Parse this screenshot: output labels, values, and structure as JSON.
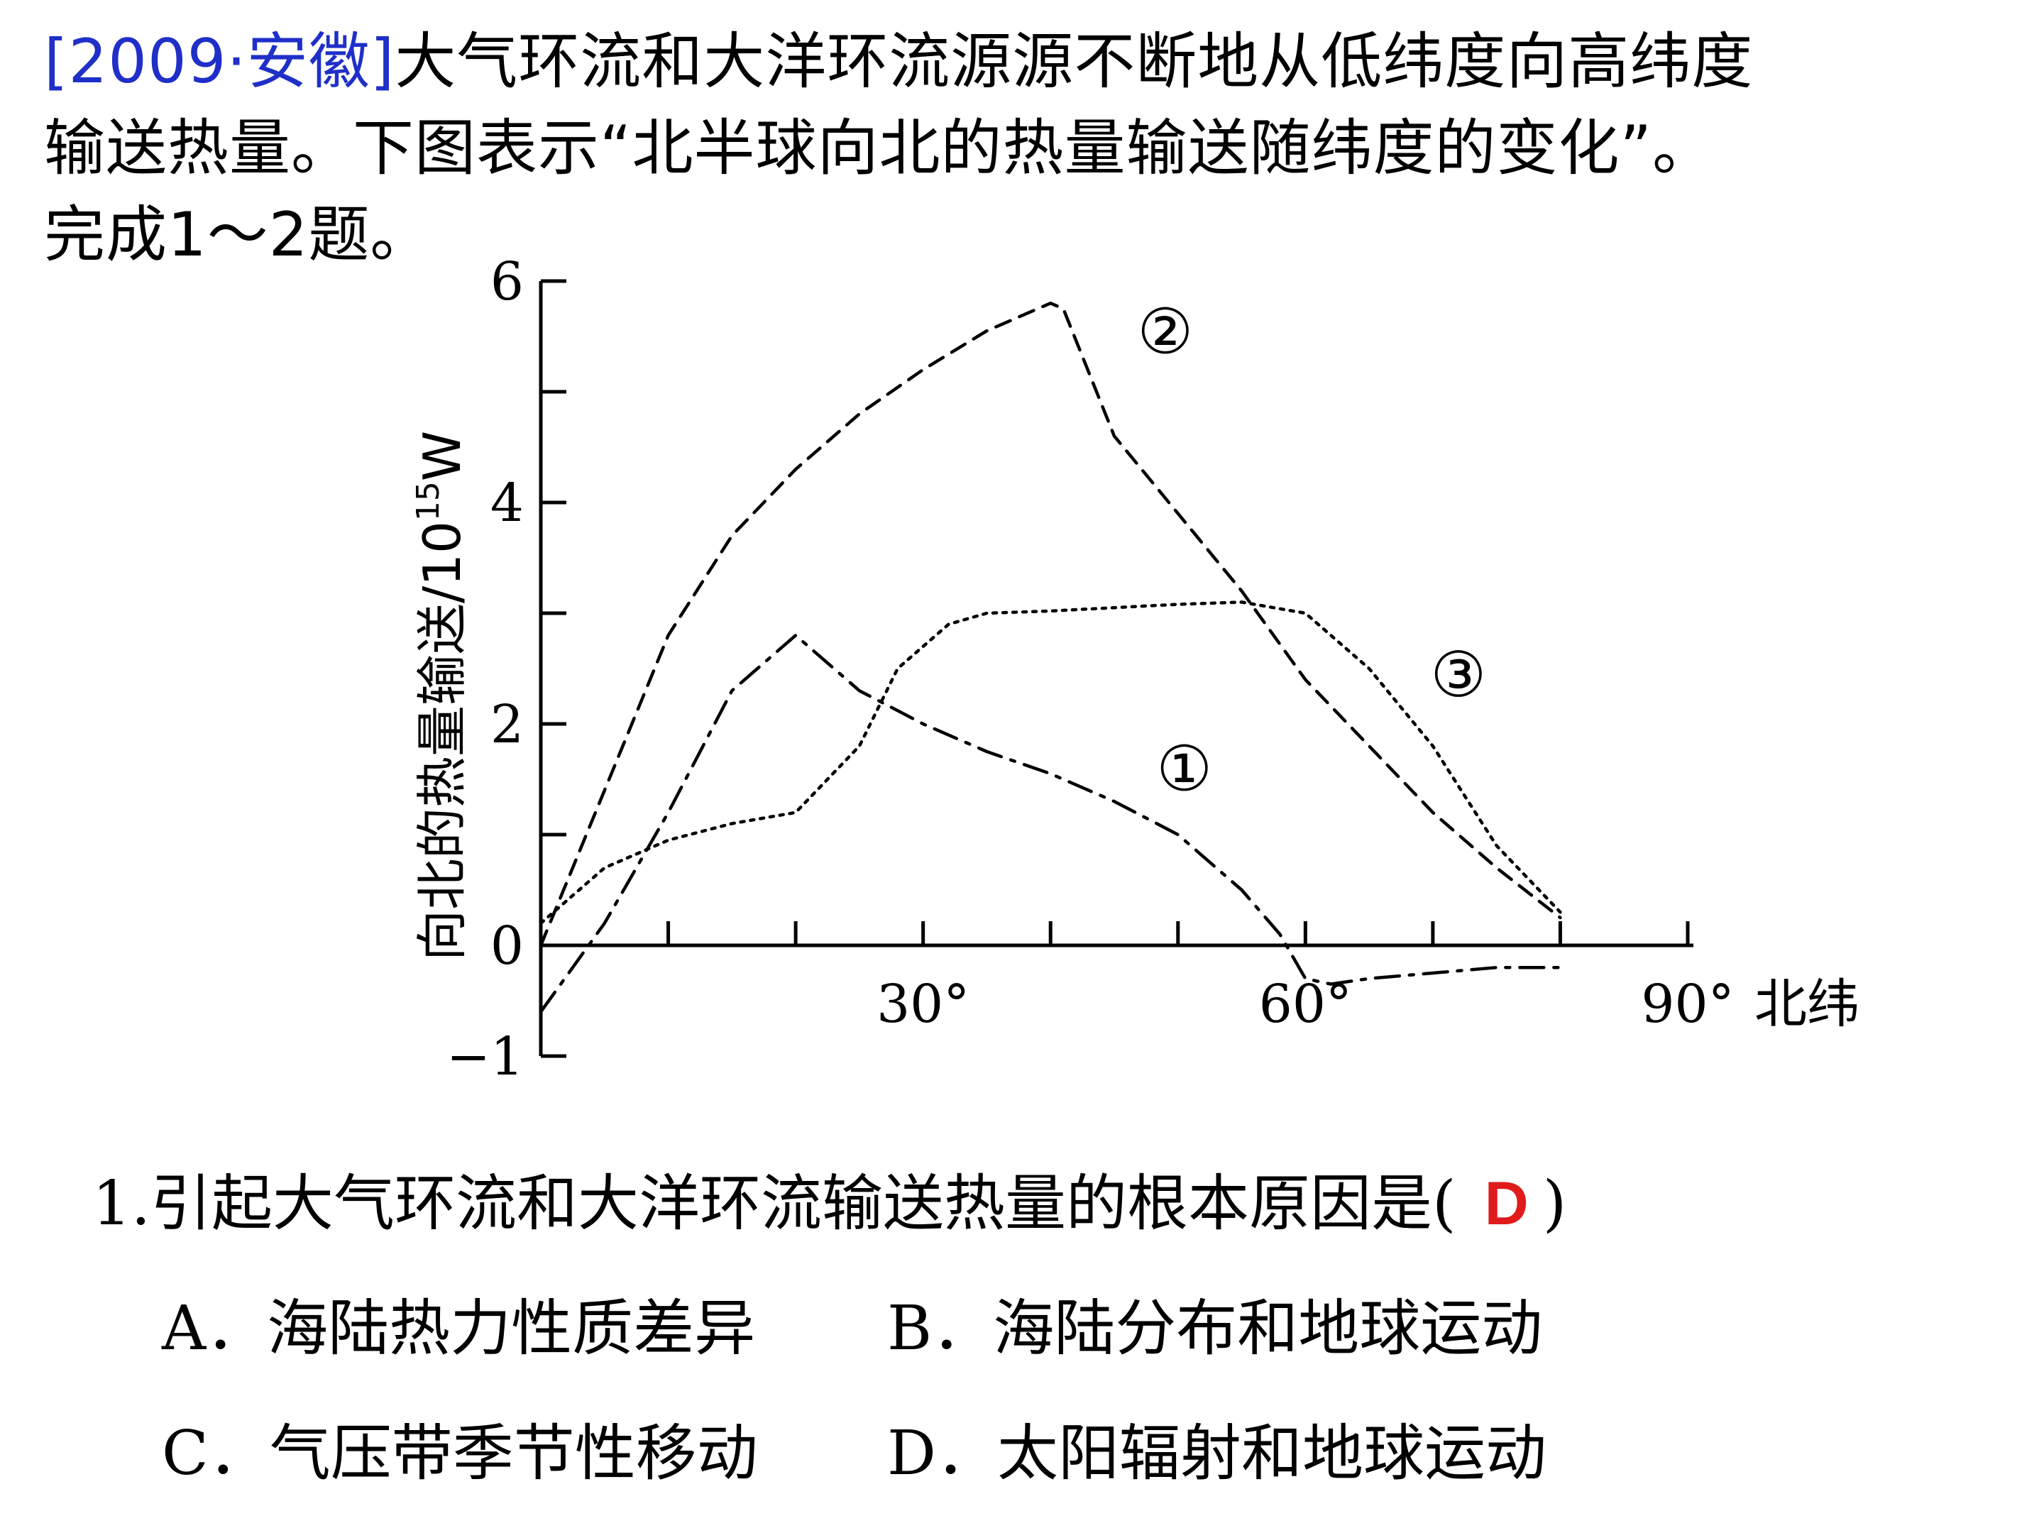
{
  "intro": {
    "source": "[2009·安徽]",
    "text_line1": "大气环流和大洋环流源源不断地从低纬度向高纬度",
    "text_line2": "输送热量。下图表示“北半球向北的热量输送随纬度的变化”。",
    "text_line3": "完成1～2题。"
  },
  "chart_data": {
    "type": "line",
    "ylabel": "向北的热量输送/10",
    "ylabel_exp": "15",
    "ylabel_unit": "W",
    "xlabel": "北纬",
    "ylim": [
      -1,
      6
    ],
    "xlim": [
      0,
      90
    ],
    "y_ticks": [
      6,
      4,
      2,
      0,
      -1
    ],
    "x_ticks": [
      "30°",
      "60°",
      "90°"
    ],
    "grid": false,
    "series": [
      {
        "name": "①",
        "style": "dash-dot",
        "x": [
          0,
          5,
          10,
          15,
          20,
          25,
          30,
          35,
          40,
          45,
          50,
          55,
          58,
          60,
          62,
          65,
          70,
          75,
          80
        ],
        "y": [
          -0.6,
          0.2,
          1.2,
          2.3,
          2.8,
          2.3,
          2.0,
          1.75,
          1.55,
          1.3,
          1.0,
          0.5,
          0.1,
          -0.3,
          -0.35,
          -0.3,
          -0.25,
          -0.2,
          -0.2
        ]
      },
      {
        "name": "②",
        "style": "dashed",
        "x": [
          0,
          5,
          10,
          15,
          20,
          25,
          30,
          35,
          40,
          41,
          45,
          50,
          55,
          60,
          65,
          70,
          75,
          80
        ],
        "y": [
          0,
          1.4,
          2.8,
          3.7,
          4.3,
          4.8,
          5.2,
          5.55,
          5.8,
          5.75,
          4.6,
          3.9,
          3.2,
          2.4,
          1.8,
          1.2,
          0.7,
          0.25
        ]
      },
      {
        "name": "③",
        "style": "dotted",
        "x": [
          0,
          5,
          10,
          15,
          20,
          25,
          28,
          32,
          35,
          40,
          45,
          50,
          55,
          60,
          65,
          70,
          75,
          80
        ],
        "y": [
          0.2,
          0.7,
          0.95,
          1.1,
          1.2,
          1.8,
          2.5,
          2.9,
          3.0,
          3.02,
          3.05,
          3.08,
          3.1,
          3.0,
          2.5,
          1.8,
          0.9,
          0.3
        ]
      }
    ]
  },
  "question": {
    "stem": "1.引起大气环流和大洋环流输送热量的根本原因是(",
    "answer": "D",
    "close": ")",
    "options": [
      "A．海陆热力性质差异",
      "B．海陆分布和地球运动",
      "C．气压带季节性移动",
      "D．太阳辐射和地球运动"
    ]
  }
}
